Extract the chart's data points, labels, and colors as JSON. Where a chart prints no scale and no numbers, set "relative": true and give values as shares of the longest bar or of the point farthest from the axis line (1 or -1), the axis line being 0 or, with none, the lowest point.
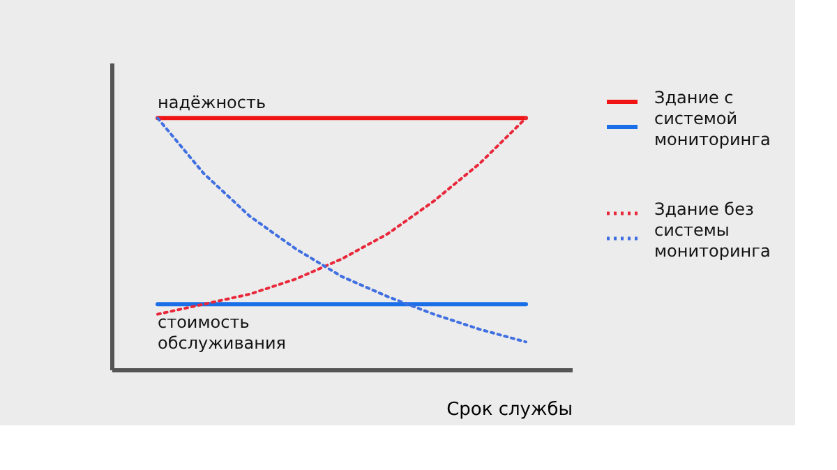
{
  "chart_data": {
    "type": "line",
    "relative": true,
    "xlabel": "Срок службы",
    "categories": [
      null,
      null,
      null,
      null,
      null,
      null,
      null,
      null,
      null
    ],
    "series": [
      {
        "name": "Здание с системой мониторинга",
        "color": "#f01414",
        "line_style": "solid",
        "values": [
          1,
          1,
          1,
          1,
          1,
          1,
          1,
          1,
          1
        ]
      },
      {
        "color": "#1a6fe8",
        "line_style": "solid",
        "values": [
          0.26,
          0.26,
          0.26,
          0.26,
          0.26,
          0.26,
          0.26,
          0.26,
          0.26
        ]
      },
      {
        "name": "Здание без системы мониторинга",
        "color": "#e8283a",
        "line_style": "dotted",
        "values": [
          0.22,
          0.26,
          0.3,
          0.36,
          0.44,
          0.54,
          0.67,
          0.82,
          1
        ]
      },
      {
        "color": "#3f6fe0",
        "line_style": "dotted",
        "values": [
          1,
          0.78,
          0.61,
          0.48,
          0.37,
          0.29,
          0.22,
          0.16,
          0.11
        ]
      }
    ],
    "annotations": [
      {
        "text": "надёжность",
        "y": 1
      },
      {
        "text": "стоимость обслуживания",
        "y": 0.26
      }
    ],
    "legend": "right",
    "grid": false
  }
}
